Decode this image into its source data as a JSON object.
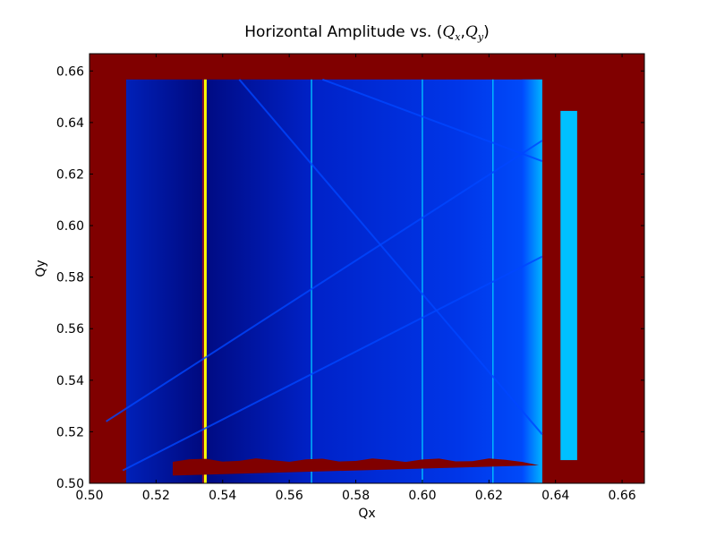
{
  "chart_data": {
    "type": "heatmap",
    "title_text": "Horizontal Amplitude vs. (",
    "title_qx": "Q",
    "title_qx_sub": "x",
    "title_sep": ",",
    "title_qy": "Q",
    "title_qy_sub": "y",
    "title_end": ")",
    "xlabel": "Qx",
    "ylabel": "Qy",
    "xlim": [
      0.5,
      0.6667
    ],
    "ylim": [
      0.5,
      0.6667
    ],
    "x_ticks": [
      "0.50",
      "0.52",
      "0.54",
      "0.56",
      "0.58",
      "0.60",
      "0.62",
      "0.64",
      "0.66"
    ],
    "y_ticks": [
      "0.50",
      "0.52",
      "0.54",
      "0.56",
      "0.58",
      "0.60",
      "0.62",
      "0.64",
      "0.66"
    ],
    "colormap": "jet",
    "grid": false,
    "scanned_region": {
      "qx": [
        0.511,
        0.636
      ],
      "qy": [
        0.5,
        0.6567
      ]
    },
    "second_band": {
      "qx": [
        0.6415,
        0.6465
      ],
      "qy": [
        0.509,
        0.6445
      ]
    },
    "vertical_resonances_qx": [
      0.5348,
      0.5667,
      0.6,
      0.6212
    ],
    "diagonal_resonances": [
      {
        "from": [
          0.505,
          0.524
        ],
        "to": [
          0.636,
          0.633
        ]
      },
      {
        "from": [
          0.51,
          0.505
        ],
        "to": [
          0.636,
          0.588
        ]
      },
      {
        "from": [
          0.545,
          0.6567
        ],
        "to": [
          0.636,
          0.519
        ]
      },
      {
        "from": [
          0.57,
          0.6567
        ],
        "to": [
          0.636,
          0.625
        ]
      }
    ],
    "colors": {
      "background": "#800000",
      "low": "#00008f",
      "mid": "#0046ff",
      "high": "#00c0ff",
      "hot": "#ffff00"
    }
  }
}
